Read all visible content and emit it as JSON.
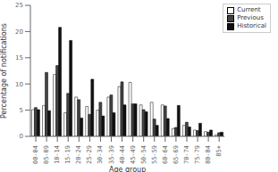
{
  "chart_data": {
    "type": "bar",
    "categories": [
      "00-04",
      "05-09",
      "10-14",
      "15-19",
      "20-24",
      "25-29",
      "30-34",
      "35-39",
      "40-44",
      "45-49",
      "50-54",
      "55-59",
      "60-64",
      "65-69",
      "70-74",
      "75-79",
      "80-84",
      "85+"
    ],
    "series": [
      {
        "name": "Current",
        "color": "#ffffff",
        "values": [
          5.1,
          5.9,
          11.8,
          4.5,
          7.5,
          5.7,
          5.0,
          7.5,
          9.5,
          10.3,
          6.0,
          6.5,
          6.0,
          1.5,
          2.1,
          1.2,
          0.9,
          0.3
        ]
      },
      {
        "name": "Previous",
        "color": "#444444",
        "values": [
          5.5,
          12.2,
          13.5,
          8.2,
          7.0,
          4.2,
          6.5,
          7.9,
          10.4,
          6.2,
          5.1,
          3.3,
          5.8,
          1.7,
          2.7,
          1.1,
          0.8,
          0.7
        ]
      },
      {
        "name": "Historical",
        "color": "#111111",
        "values": [
          5.1,
          4.9,
          20.8,
          18.3,
          3.5,
          10.9,
          3.9,
          4.5,
          6.0,
          6.2,
          4.7,
          2.1,
          3.4,
          5.9,
          1.8,
          2.5,
          1.2,
          0.8
        ]
      }
    ],
    "xlabel": "Age group",
    "ylabel": "Percentage of notifications",
    "ylim": [
      0,
      25
    ],
    "yticks": [
      0,
      5,
      10,
      15,
      20,
      25
    ],
    "legend": "upper right",
    "grid": false
  }
}
